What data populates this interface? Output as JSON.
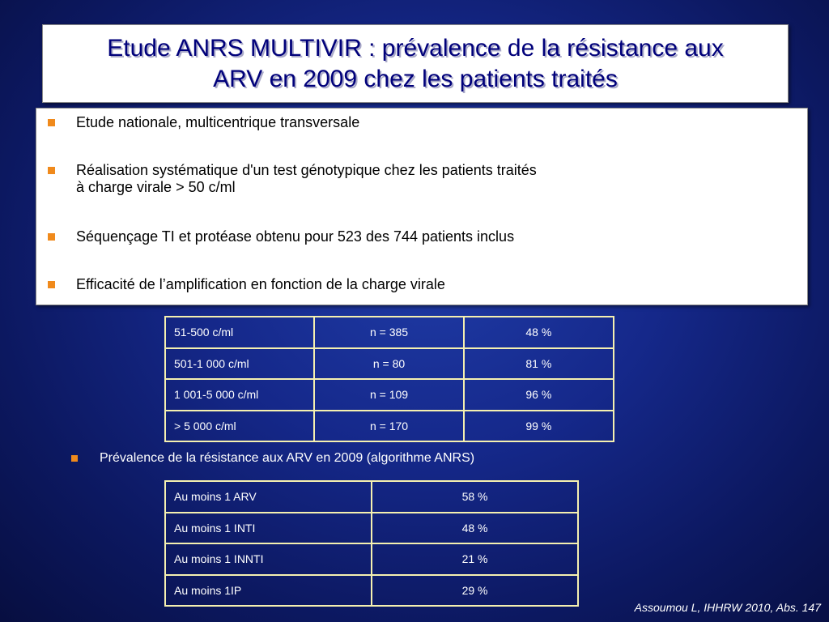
{
  "title": {
    "line1_part1": "Etude ANRS MULTIVIR : prévalence",
    "line1_part2": " de ",
    "line1_part3": "la résistance aux",
    "line2": "ARV en 2009 chez les patients traités"
  },
  "bullets": [
    {
      "line1": "Etude nationale, multicentrique transversale"
    },
    {
      "line1": "Réalisation systématique d'un test génotypique chez les patients traités",
      "line2": "à charge virale > 50 c/ml"
    },
    {
      "line1": "Séquençage TI et protéase obtenu pour 523 des 744 patients inclus"
    },
    {
      "line1": "Efficacité de l’amplification en fonction de la charge virale"
    }
  ],
  "amplification_table": {
    "rows": [
      [
        "51-500 c/ml",
        "n = 385",
        "48 %"
      ],
      [
        "501-1 000 c/ml",
        "n = 80",
        "81 %"
      ],
      [
        "1 001-5 000 c/ml",
        "n = 109",
        "96 %"
      ],
      [
        "> 5 000 c/ml",
        "n = 170",
        "99 %"
      ]
    ]
  },
  "prevalence_bullet": "Prévalence de la résistance aux ARV en 2009 (algorithme ANRS)",
  "prevalence_table": {
    "rows": [
      [
        "Au moins 1 ARV",
        "58 %"
      ],
      [
        "Au moins 1 INTI",
        "48 %"
      ],
      [
        "Au moins 1 INNTI",
        "21 %"
      ],
      [
        "Au moins 1IP",
        "29 %"
      ]
    ]
  },
  "citation": "Assoumou L,  IHHRW 2010, Abs. 147",
  "colors": {
    "bullet_square": "#f08a1c",
    "title_text": "#00007a",
    "table_border": "#f5f0b0",
    "background": "#15288a"
  }
}
